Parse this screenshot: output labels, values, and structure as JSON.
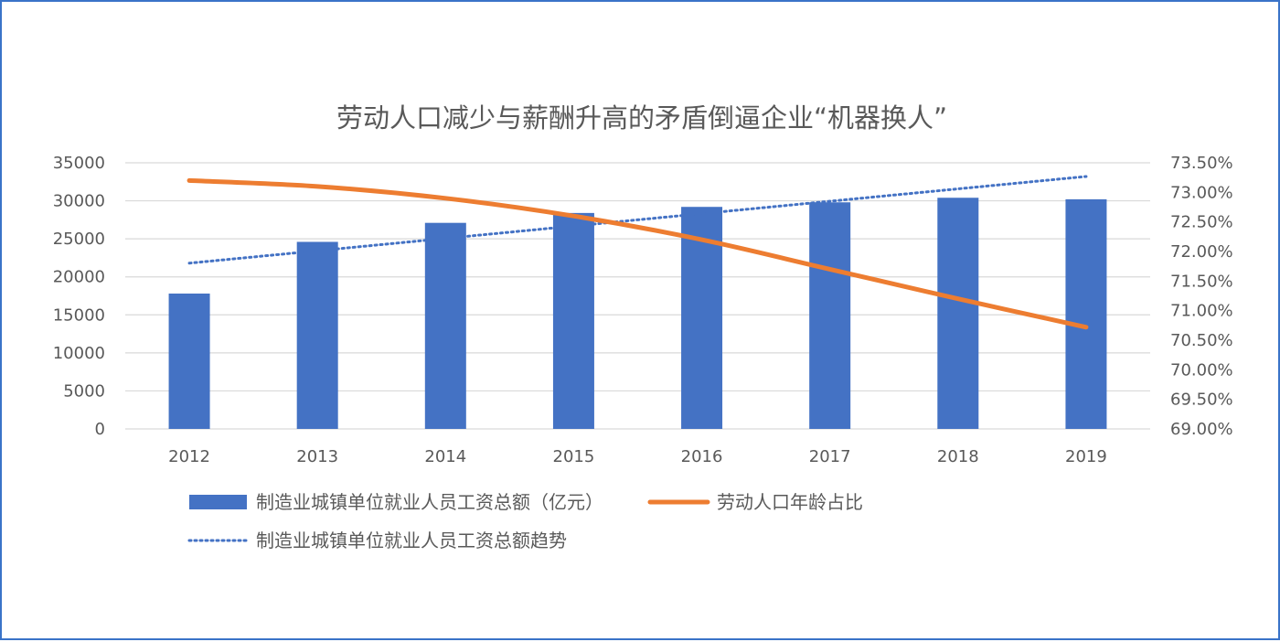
{
  "chart_data": {
    "type": "bar",
    "title": "劳动人口减少与薪酬升高的矛盾倒逼企业“机器换人”",
    "categories": [
      "2012",
      "2013",
      "2014",
      "2015",
      "2016",
      "2017",
      "2018",
      "2019"
    ],
    "series": [
      {
        "name": "制造业城镇单位就业人员工资总额（亿元）",
        "type": "bar",
        "axis": "left",
        "color": "#4472c4",
        "values": [
          17800,
          24600,
          27100,
          28400,
          29200,
          29800,
          30400,
          30200
        ]
      },
      {
        "name": "劳动人口年龄占比",
        "type": "line",
        "axis": "right",
        "color": "#ed7d31",
        "values": [
          73.2,
          73.1,
          72.9,
          72.6,
          72.2,
          71.7,
          71.2,
          70.72
        ]
      },
      {
        "name": "制造业城镇单位就业人员工资总额趋势",
        "type": "trendline",
        "axis": "left",
        "color": "#4472c4",
        "values": [
          21800,
          23429,
          25057,
          26686,
          28314,
          29943,
          31571,
          33200
        ]
      }
    ],
    "left_axis": {
      "ylim": [
        0,
        35000
      ],
      "ticks": [
        "0",
        "5000",
        "10000",
        "15000",
        "20000",
        "25000",
        "30000",
        "35000"
      ]
    },
    "right_axis": {
      "ylim": [
        69.0,
        73.5
      ],
      "ticks": [
        "69.00%",
        "69.50%",
        "70.00%",
        "70.50%",
        "71.00%",
        "71.50%",
        "72.00%",
        "72.50%",
        "73.00%",
        "73.50%"
      ]
    },
    "grid": true,
    "legend": "bottom"
  }
}
